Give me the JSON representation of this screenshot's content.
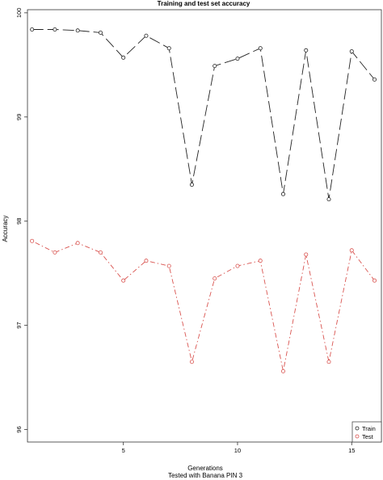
{
  "chart_data": {
    "type": "line",
    "title": "Training and test set accuracy",
    "xlabel": "Generations",
    "ylabel": "Accuracy",
    "subtitle": "Tested with Banana PIN 3",
    "xlim": [
      0.8,
      16.3
    ],
    "ylim": [
      95.88,
      100.03
    ],
    "x_ticks": [
      5,
      10,
      15
    ],
    "y_ticks": [
      96,
      97,
      98,
      99,
      100
    ],
    "x": [
      1,
      2,
      3,
      4,
      5,
      6,
      7,
      8,
      9,
      10,
      11,
      12,
      13,
      14,
      15,
      16
    ],
    "series": [
      {
        "name": "Train",
        "color": "#222222",
        "line_style": "longdash",
        "values": [
          99.84,
          99.84,
          99.83,
          99.81,
          99.57,
          99.78,
          99.66,
          98.35,
          99.49,
          99.56,
          99.66,
          98.26,
          99.64,
          98.21,
          99.63,
          99.36
        ]
      },
      {
        "name": "Test",
        "color": "#d9534f",
        "line_style": "dotdash",
        "values": [
          97.81,
          97.7,
          97.79,
          97.7,
          97.43,
          97.62,
          97.57,
          96.65,
          97.45,
          97.57,
          97.62,
          96.56,
          97.68,
          96.65,
          97.72,
          97.43
        ]
      }
    ],
    "grid": false,
    "legend_position": "bottom-right"
  }
}
